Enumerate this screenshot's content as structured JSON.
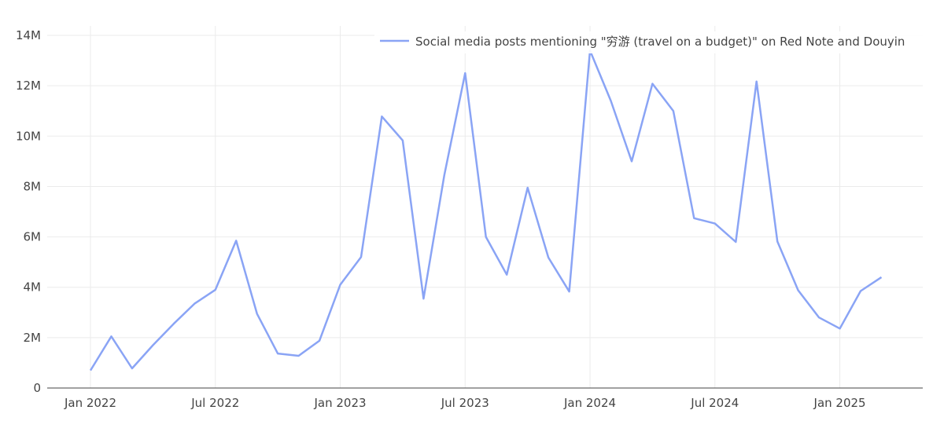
{
  "chart_data": {
    "type": "line",
    "title": "",
    "xlabel": "",
    "ylabel": "",
    "x": [
      "2022-01",
      "2022-02",
      "2022-03",
      "2022-04",
      "2022-05",
      "2022-06",
      "2022-07",
      "2022-08",
      "2022-09",
      "2022-10",
      "2022-11",
      "2022-12",
      "2023-01",
      "2023-02",
      "2023-03",
      "2023-04",
      "2023-05",
      "2023-06",
      "2023-07",
      "2023-08",
      "2023-09",
      "2023-10",
      "2023-11",
      "2023-12",
      "2024-01",
      "2024-02",
      "2024-03",
      "2024-04",
      "2024-05",
      "2024-06",
      "2024-07",
      "2024-08",
      "2024-09",
      "2024-10",
      "2024-11",
      "2024-12",
      "2025-01",
      "2025-02",
      "2025-03"
    ],
    "series": [
      {
        "name": "Social media posts mentioning \"穷游 (travel on a budget)\" on Red Note and Douyin",
        "color": "#8aa4f5",
        "values": [
          700000,
          2050000,
          780000,
          1700000,
          2550000,
          3350000,
          3900000,
          5850000,
          2950000,
          1370000,
          1280000,
          1880000,
          4100000,
          5200000,
          10780000,
          9830000,
          3550000,
          8450000,
          12500000,
          6000000,
          4500000,
          7950000,
          5180000,
          3830000,
          13400000,
          11400000,
          9000000,
          12080000,
          11000000,
          6740000,
          6530000,
          5800000,
          12170000,
          5820000,
          3880000,
          2800000,
          2360000,
          3850000,
          4400000
        ]
      }
    ],
    "x_tick_labels": [
      "Jan 2022",
      "Jul 2022",
      "Jan 2023",
      "Jul 2023",
      "Jan 2024",
      "Jul 2024",
      "Jan 2025"
    ],
    "x_tick_values": [
      "2022-01",
      "2022-07",
      "2023-01",
      "2023-07",
      "2024-01",
      "2024-07",
      "2025-01"
    ],
    "y_tick_labels": [
      "0",
      "2M",
      "4M",
      "6M",
      "8M",
      "10M",
      "12M",
      "14M"
    ],
    "y_tick_values": [
      0,
      2000000,
      4000000,
      6000000,
      8000000,
      10000000,
      12000000,
      14000000
    ],
    "ylim": [
      0,
      14000000
    ],
    "grid": true,
    "legend_position": "top-right"
  }
}
